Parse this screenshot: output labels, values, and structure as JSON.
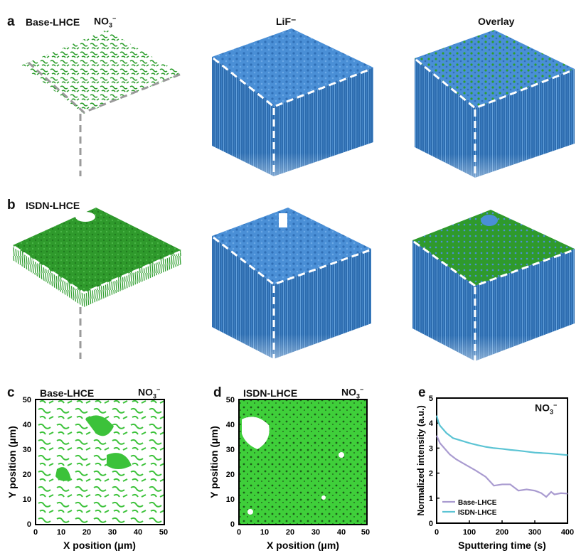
{
  "panels": {
    "a": {
      "letter": "a",
      "sample": "Base-LHCE",
      "ion_prefix": "NO",
      "ion_sub": "3",
      "ion_sup": "−",
      "col2_title": "LiF⁻",
      "col3_title": "Overlay"
    },
    "b": {
      "letter": "b",
      "sample": "ISDN-LHCE"
    },
    "c": {
      "letter": "c",
      "sample": "Base-LHCE",
      "ion_prefix": "NO",
      "ion_sub": "3",
      "ion_sup": "−"
    },
    "d": {
      "letter": "d",
      "sample": "ISDN-LHCE",
      "ion_prefix": "NO",
      "ion_sub": "3",
      "ion_sup": "−"
    },
    "e": {
      "letter": "e"
    }
  },
  "maps": {
    "xlabel": "X position (μm)",
    "ylabel": "Y position (μm)",
    "ticks": [
      "0",
      "10",
      "20",
      "30",
      "40",
      "50"
    ]
  },
  "colors": {
    "green": "#2e9e2e",
    "bright_green": "#3fcf3a",
    "blue": "#3f86cf",
    "dash_white": "#ffffff",
    "dash_grey": "#9a9a9a",
    "base_line": "#a99bd0",
    "isdn_line": "#5cc4d4"
  },
  "chart_data": {
    "type": "line",
    "title": "",
    "annotation_prefix": "NO",
    "annotation_sub": "3",
    "annotation_sup": "−",
    "xlabel": "Sputtering time (s)",
    "ylabel": "Normalized intensity (a.u.)",
    "xlim": [
      0,
      400
    ],
    "ylim": [
      0,
      5
    ],
    "xticks": [
      0,
      100,
      200,
      300,
      400
    ],
    "yticks": [
      0,
      1,
      2,
      3,
      4,
      5
    ],
    "legend_position": "bottom-left",
    "series": [
      {
        "name": "Base-LHCE",
        "color": "#a99bd0",
        "x": [
          0,
          5,
          10,
          20,
          30,
          40,
          50,
          60,
          80,
          100,
          120,
          150,
          175,
          200,
          225,
          250,
          275,
          300,
          320,
          335,
          350,
          360,
          380,
          400
        ],
        "y": [
          3.5,
          3.35,
          3.2,
          3.05,
          2.9,
          2.75,
          2.65,
          2.55,
          2.4,
          2.25,
          2.1,
          1.85,
          1.5,
          1.55,
          1.55,
          1.3,
          1.35,
          1.3,
          1.2,
          1.05,
          1.25,
          1.15,
          1.2,
          1.18
        ]
      },
      {
        "name": "ISDN-LHCE",
        "color": "#5cc4d4",
        "x": [
          0,
          5,
          10,
          20,
          30,
          40,
          50,
          75,
          100,
          125,
          150,
          175,
          200,
          225,
          250,
          275,
          300,
          325,
          350,
          375,
          400
        ],
        "y": [
          4.3,
          4.05,
          3.9,
          3.75,
          3.6,
          3.5,
          3.4,
          3.3,
          3.2,
          3.12,
          3.05,
          3.0,
          2.97,
          2.93,
          2.9,
          2.86,
          2.82,
          2.8,
          2.78,
          2.75,
          2.72
        ]
      }
    ]
  }
}
